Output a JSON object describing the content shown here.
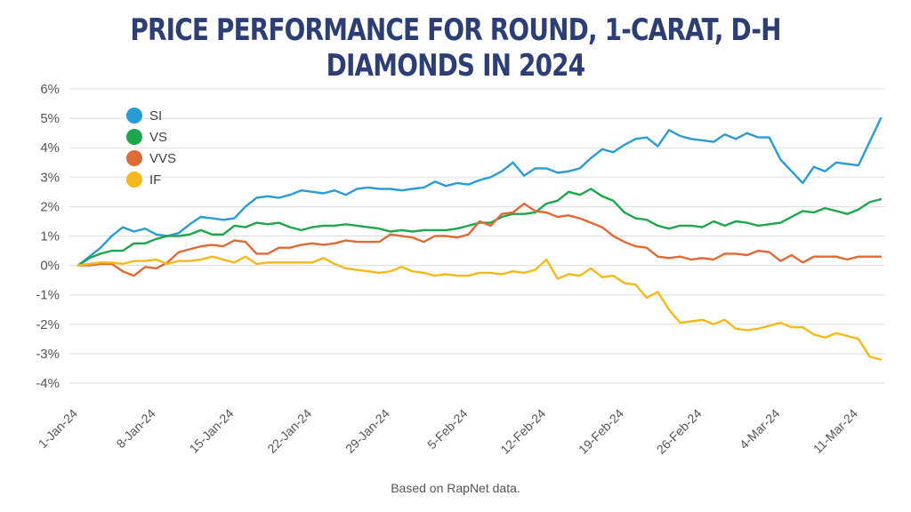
{
  "chart_data": {
    "type": "line",
    "title": "PRICE PERFORMANCE FOR ROUND, 1-CARAT, D-H DIAMONDS IN 2024",
    "footnote": "Based on RapNet data.",
    "ylim": [
      -4,
      6
    ],
    "ytick_labels": [
      "6%",
      "5%",
      "4%",
      "3%",
      "2%",
      "1%",
      "0%",
      "-1%",
      "-2%",
      "-3%",
      "-4%"
    ],
    "ytick_values": [
      6,
      5,
      4,
      3,
      2,
      1,
      0,
      -1,
      -2,
      -3,
      -4
    ],
    "xtick_labels": [
      "1-Jan-24",
      "8-Jan-24",
      "15-Jan-24",
      "22-Jan-24",
      "29-Jan-24",
      "5-Feb-24",
      "12-Feb-24",
      "19-Feb-24",
      "26-Feb-24",
      "4-Mar-24",
      "11-Mar-24"
    ],
    "xtick_days": [
      0,
      7,
      14,
      21,
      28,
      35,
      42,
      49,
      56,
      63,
      70
    ],
    "x_start_label": "1-Jan-24",
    "grid": "horizontal",
    "legend_position": "top-left",
    "series": [
      {
        "name": "SI",
        "color": "#2b9bd6",
        "points": [
          [
            0,
            0
          ],
          [
            2,
            0.6
          ],
          [
            3,
            1.0
          ],
          [
            4,
            1.3
          ],
          [
            5,
            1.15
          ],
          [
            6,
            1.25
          ],
          [
            7,
            1.05
          ],
          [
            8,
            1.0
          ],
          [
            9,
            1.1
          ],
          [
            10,
            1.4
          ],
          [
            11,
            1.65
          ],
          [
            12,
            1.6
          ],
          [
            13,
            1.55
          ],
          [
            14,
            1.6
          ],
          [
            15,
            2.0
          ],
          [
            16,
            2.3
          ],
          [
            17,
            2.35
          ],
          [
            18,
            2.3
          ],
          [
            19,
            2.4
          ],
          [
            20,
            2.55
          ],
          [
            21,
            2.5
          ],
          [
            22,
            2.45
          ],
          [
            23,
            2.55
          ],
          [
            24,
            2.4
          ],
          [
            25,
            2.6
          ],
          [
            26,
            2.65
          ],
          [
            27,
            2.6
          ],
          [
            28,
            2.6
          ],
          [
            29,
            2.55
          ],
          [
            30,
            2.6
          ],
          [
            31,
            2.65
          ],
          [
            32,
            2.85
          ],
          [
            33,
            2.7
          ],
          [
            34,
            2.8
          ],
          [
            35,
            2.75
          ],
          [
            36,
            2.9
          ],
          [
            37,
            3.0
          ],
          [
            38,
            3.2
          ],
          [
            39,
            3.5
          ],
          [
            40,
            3.05
          ],
          [
            41,
            3.3
          ],
          [
            42,
            3.3
          ],
          [
            43,
            3.15
          ],
          [
            44,
            3.2
          ],
          [
            45,
            3.3
          ],
          [
            46,
            3.65
          ],
          [
            47,
            3.95
          ],
          [
            48,
            3.85
          ],
          [
            49,
            4.1
          ],
          [
            50,
            4.3
          ],
          [
            51,
            4.35
          ],
          [
            52,
            4.05
          ],
          [
            53,
            4.6
          ],
          [
            54,
            4.4
          ],
          [
            55,
            4.3
          ],
          [
            56,
            4.25
          ],
          [
            57,
            4.2
          ],
          [
            58,
            4.45
          ],
          [
            59,
            4.3
          ],
          [
            60,
            4.5
          ],
          [
            61,
            4.35
          ],
          [
            62,
            4.35
          ],
          [
            63,
            3.6
          ],
          [
            64,
            3.2
          ],
          [
            65,
            2.8
          ],
          [
            66,
            3.35
          ],
          [
            67,
            3.2
          ],
          [
            68,
            3.5
          ],
          [
            69,
            3.45
          ],
          [
            70,
            3.4
          ],
          [
            71,
            4.2
          ],
          [
            72,
            5.0
          ]
        ]
      },
      {
        "name": "VS",
        "color": "#1fa54b",
        "points": [
          [
            0,
            0
          ],
          [
            1,
            0.25
          ],
          [
            2,
            0.4
          ],
          [
            3,
            0.5
          ],
          [
            4,
            0.5
          ],
          [
            5,
            0.75
          ],
          [
            6,
            0.75
          ],
          [
            7,
            0.9
          ],
          [
            8,
            1.0
          ],
          [
            9,
            1.0
          ],
          [
            10,
            1.05
          ],
          [
            11,
            1.2
          ],
          [
            12,
            1.05
          ],
          [
            13,
            1.05
          ],
          [
            14,
            1.35
          ],
          [
            15,
            1.3
          ],
          [
            16,
            1.45
          ],
          [
            17,
            1.4
          ],
          [
            18,
            1.45
          ],
          [
            19,
            1.3
          ],
          [
            20,
            1.2
          ],
          [
            21,
            1.3
          ],
          [
            22,
            1.35
          ],
          [
            23,
            1.35
          ],
          [
            24,
            1.4
          ],
          [
            25,
            1.35
          ],
          [
            26,
            1.3
          ],
          [
            27,
            1.25
          ],
          [
            28,
            1.15
          ],
          [
            29,
            1.2
          ],
          [
            30,
            1.15
          ],
          [
            31,
            1.2
          ],
          [
            32,
            1.2
          ],
          [
            33,
            1.2
          ],
          [
            34,
            1.25
          ],
          [
            35,
            1.35
          ],
          [
            36,
            1.45
          ],
          [
            37,
            1.45
          ],
          [
            38,
            1.65
          ],
          [
            39,
            1.75
          ],
          [
            40,
            1.75
          ],
          [
            41,
            1.8
          ],
          [
            42,
            2.1
          ],
          [
            43,
            2.2
          ],
          [
            44,
            2.5
          ],
          [
            45,
            2.4
          ],
          [
            46,
            2.6
          ],
          [
            47,
            2.35
          ],
          [
            48,
            2.2
          ],
          [
            49,
            1.8
          ],
          [
            50,
            1.6
          ],
          [
            51,
            1.55
          ],
          [
            52,
            1.35
          ],
          [
            53,
            1.25
          ],
          [
            54,
            1.35
          ],
          [
            55,
            1.35
          ],
          [
            56,
            1.3
          ],
          [
            57,
            1.5
          ],
          [
            58,
            1.35
          ],
          [
            59,
            1.5
          ],
          [
            60,
            1.45
          ],
          [
            61,
            1.35
          ],
          [
            62,
            1.4
          ],
          [
            63,
            1.45
          ],
          [
            64,
            1.65
          ],
          [
            65,
            1.85
          ],
          [
            66,
            1.8
          ],
          [
            67,
            1.95
          ],
          [
            68,
            1.85
          ],
          [
            69,
            1.75
          ],
          [
            70,
            1.9
          ],
          [
            71,
            2.15
          ],
          [
            72,
            2.25
          ]
        ]
      },
      {
        "name": "VVS",
        "color": "#e06a35",
        "points": [
          [
            0,
            0
          ],
          [
            1,
            0.0
          ],
          [
            2,
            0.05
          ],
          [
            3,
            0.05
          ],
          [
            4,
            -0.2
          ],
          [
            5,
            -0.35
          ],
          [
            6,
            -0.05
          ],
          [
            7,
            -0.1
          ],
          [
            8,
            0.1
          ],
          [
            9,
            0.45
          ],
          [
            10,
            0.55
          ],
          [
            11,
            0.65
          ],
          [
            12,
            0.7
          ],
          [
            13,
            0.65
          ],
          [
            14,
            0.85
          ],
          [
            15,
            0.8
          ],
          [
            16,
            0.4
          ],
          [
            17,
            0.4
          ],
          [
            18,
            0.6
          ],
          [
            19,
            0.6
          ],
          [
            20,
            0.7
          ],
          [
            21,
            0.75
          ],
          [
            22,
            0.7
          ],
          [
            23,
            0.75
          ],
          [
            24,
            0.85
          ],
          [
            25,
            0.8
          ],
          [
            26,
            0.8
          ],
          [
            27,
            0.8
          ],
          [
            28,
            1.05
          ],
          [
            29,
            1.0
          ],
          [
            30,
            0.95
          ],
          [
            31,
            0.8
          ],
          [
            32,
            1.0
          ],
          [
            33,
            1.0
          ],
          [
            34,
            0.95
          ],
          [
            35,
            1.05
          ],
          [
            36,
            1.5
          ],
          [
            37,
            1.35
          ],
          [
            38,
            1.75
          ],
          [
            39,
            1.8
          ],
          [
            40,
            2.1
          ],
          [
            41,
            1.85
          ],
          [
            42,
            1.8
          ],
          [
            43,
            1.65
          ],
          [
            44,
            1.7
          ],
          [
            45,
            1.6
          ],
          [
            46,
            1.45
          ],
          [
            47,
            1.3
          ],
          [
            48,
            1.0
          ],
          [
            49,
            0.8
          ],
          [
            50,
            0.65
          ],
          [
            51,
            0.6
          ],
          [
            52,
            0.3
          ],
          [
            53,
            0.25
          ],
          [
            54,
            0.3
          ],
          [
            55,
            0.2
          ],
          [
            56,
            0.25
          ],
          [
            57,
            0.2
          ],
          [
            58,
            0.4
          ],
          [
            59,
            0.4
          ],
          [
            60,
            0.35
          ],
          [
            61,
            0.5
          ],
          [
            62,
            0.45
          ],
          [
            63,
            0.15
          ],
          [
            64,
            0.35
          ],
          [
            65,
            0.1
          ],
          [
            66,
            0.3
          ],
          [
            67,
            0.3
          ],
          [
            68,
            0.3
          ],
          [
            69,
            0.2
          ],
          [
            70,
            0.3
          ],
          [
            71,
            0.3
          ],
          [
            72,
            0.3
          ]
        ]
      },
      {
        "name": "IF",
        "color": "#f5b91c",
        "points": [
          [
            0,
            0
          ],
          [
            1,
            0.05
          ],
          [
            2,
            0.1
          ],
          [
            3,
            0.1
          ],
          [
            4,
            0.05
          ],
          [
            5,
            0.15
          ],
          [
            6,
            0.15
          ],
          [
            7,
            0.2
          ],
          [
            8,
            0.05
          ],
          [
            9,
            0.15
          ],
          [
            10,
            0.15
          ],
          [
            11,
            0.2
          ],
          [
            12,
            0.3
          ],
          [
            13,
            0.2
          ],
          [
            14,
            0.1
          ],
          [
            15,
            0.3
          ],
          [
            16,
            0.05
          ],
          [
            17,
            0.1
          ],
          [
            18,
            0.1
          ],
          [
            19,
            0.1
          ],
          [
            20,
            0.1
          ],
          [
            21,
            0.1
          ],
          [
            22,
            0.25
          ],
          [
            23,
            0.05
          ],
          [
            24,
            -0.1
          ],
          [
            25,
            -0.15
          ],
          [
            26,
            -0.2
          ],
          [
            27,
            -0.25
          ],
          [
            28,
            -0.2
          ],
          [
            29,
            -0.05
          ],
          [
            30,
            -0.2
          ],
          [
            31,
            -0.25
          ],
          [
            32,
            -0.35
          ],
          [
            33,
            -0.3
          ],
          [
            34,
            -0.35
          ],
          [
            35,
            -0.35
          ],
          [
            36,
            -0.25
          ],
          [
            37,
            -0.25
          ],
          [
            38,
            -0.3
          ],
          [
            39,
            -0.2
          ],
          [
            40,
            -0.25
          ],
          [
            41,
            -0.15
          ],
          [
            42,
            0.2
          ],
          [
            43,
            -0.45
          ],
          [
            44,
            -0.3
          ],
          [
            45,
            -0.35
          ],
          [
            46,
            -0.1
          ],
          [
            47,
            -0.4
          ],
          [
            48,
            -0.35
          ],
          [
            49,
            -0.6
          ],
          [
            50,
            -0.65
          ],
          [
            51,
            -1.1
          ],
          [
            52,
            -0.9
          ],
          [
            53,
            -1.5
          ],
          [
            54,
            -1.95
          ],
          [
            55,
            -1.9
          ],
          [
            56,
            -1.85
          ],
          [
            57,
            -2.0
          ],
          [
            58,
            -1.85
          ],
          [
            59,
            -2.15
          ],
          [
            60,
            -2.2
          ],
          [
            61,
            -2.15
          ],
          [
            62,
            -2.05
          ],
          [
            63,
            -1.95
          ],
          [
            64,
            -2.1
          ],
          [
            65,
            -2.1
          ],
          [
            66,
            -2.35
          ],
          [
            67,
            -2.45
          ],
          [
            68,
            -2.3
          ],
          [
            69,
            -2.4
          ],
          [
            70,
            -2.5
          ],
          [
            71,
            -3.1
          ],
          [
            72,
            -3.2
          ]
        ]
      }
    ]
  }
}
